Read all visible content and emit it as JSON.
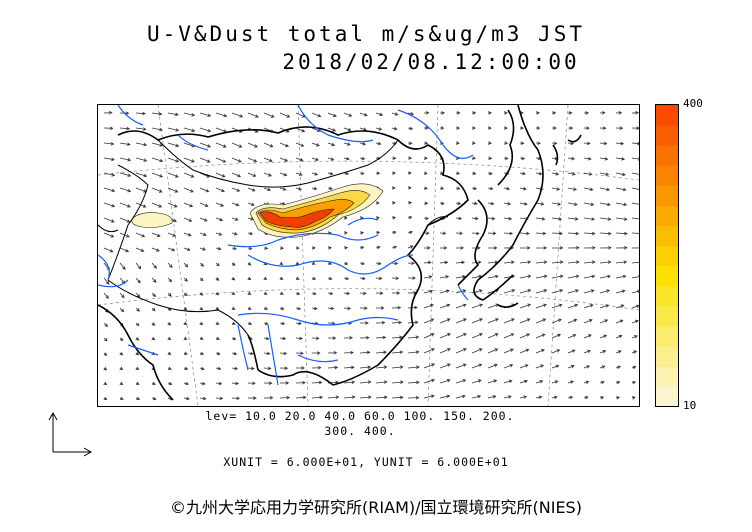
{
  "title": {
    "line1": "U-V&Dust total m/s&ug/m3 JST",
    "line2": "2018/02/08.12:00:00"
  },
  "colorbar": {
    "max_label": "400",
    "min_label": "10",
    "colors": [
      "#fbf6d0",
      "#fbf3b0",
      "#fbef8e",
      "#fbec6c",
      "#fbe84a",
      "#fbe52a",
      "#fbe000",
      "#fbd000",
      "#fbbd00",
      "#fbaa00",
      "#fb9700",
      "#fb8400",
      "#fb7100",
      "#fb5e00",
      "#fb4b00"
    ]
  },
  "levels": {
    "line1": "lev= 10.0 20.0 40.0 60.0 100. 150. 200.",
    "line2": "300. 400."
  },
  "units": "XUNIT = 6.000E+01, YUNIT = 6.000E+01",
  "copyright": "©九州大学応用力学研究所(RIAM)/国立環境研究所(NIES)",
  "colors": {
    "coast": "#000000",
    "river": "#1a5cff",
    "dust_high": "#f04000",
    "dust_low": "#fbf3c0"
  }
}
